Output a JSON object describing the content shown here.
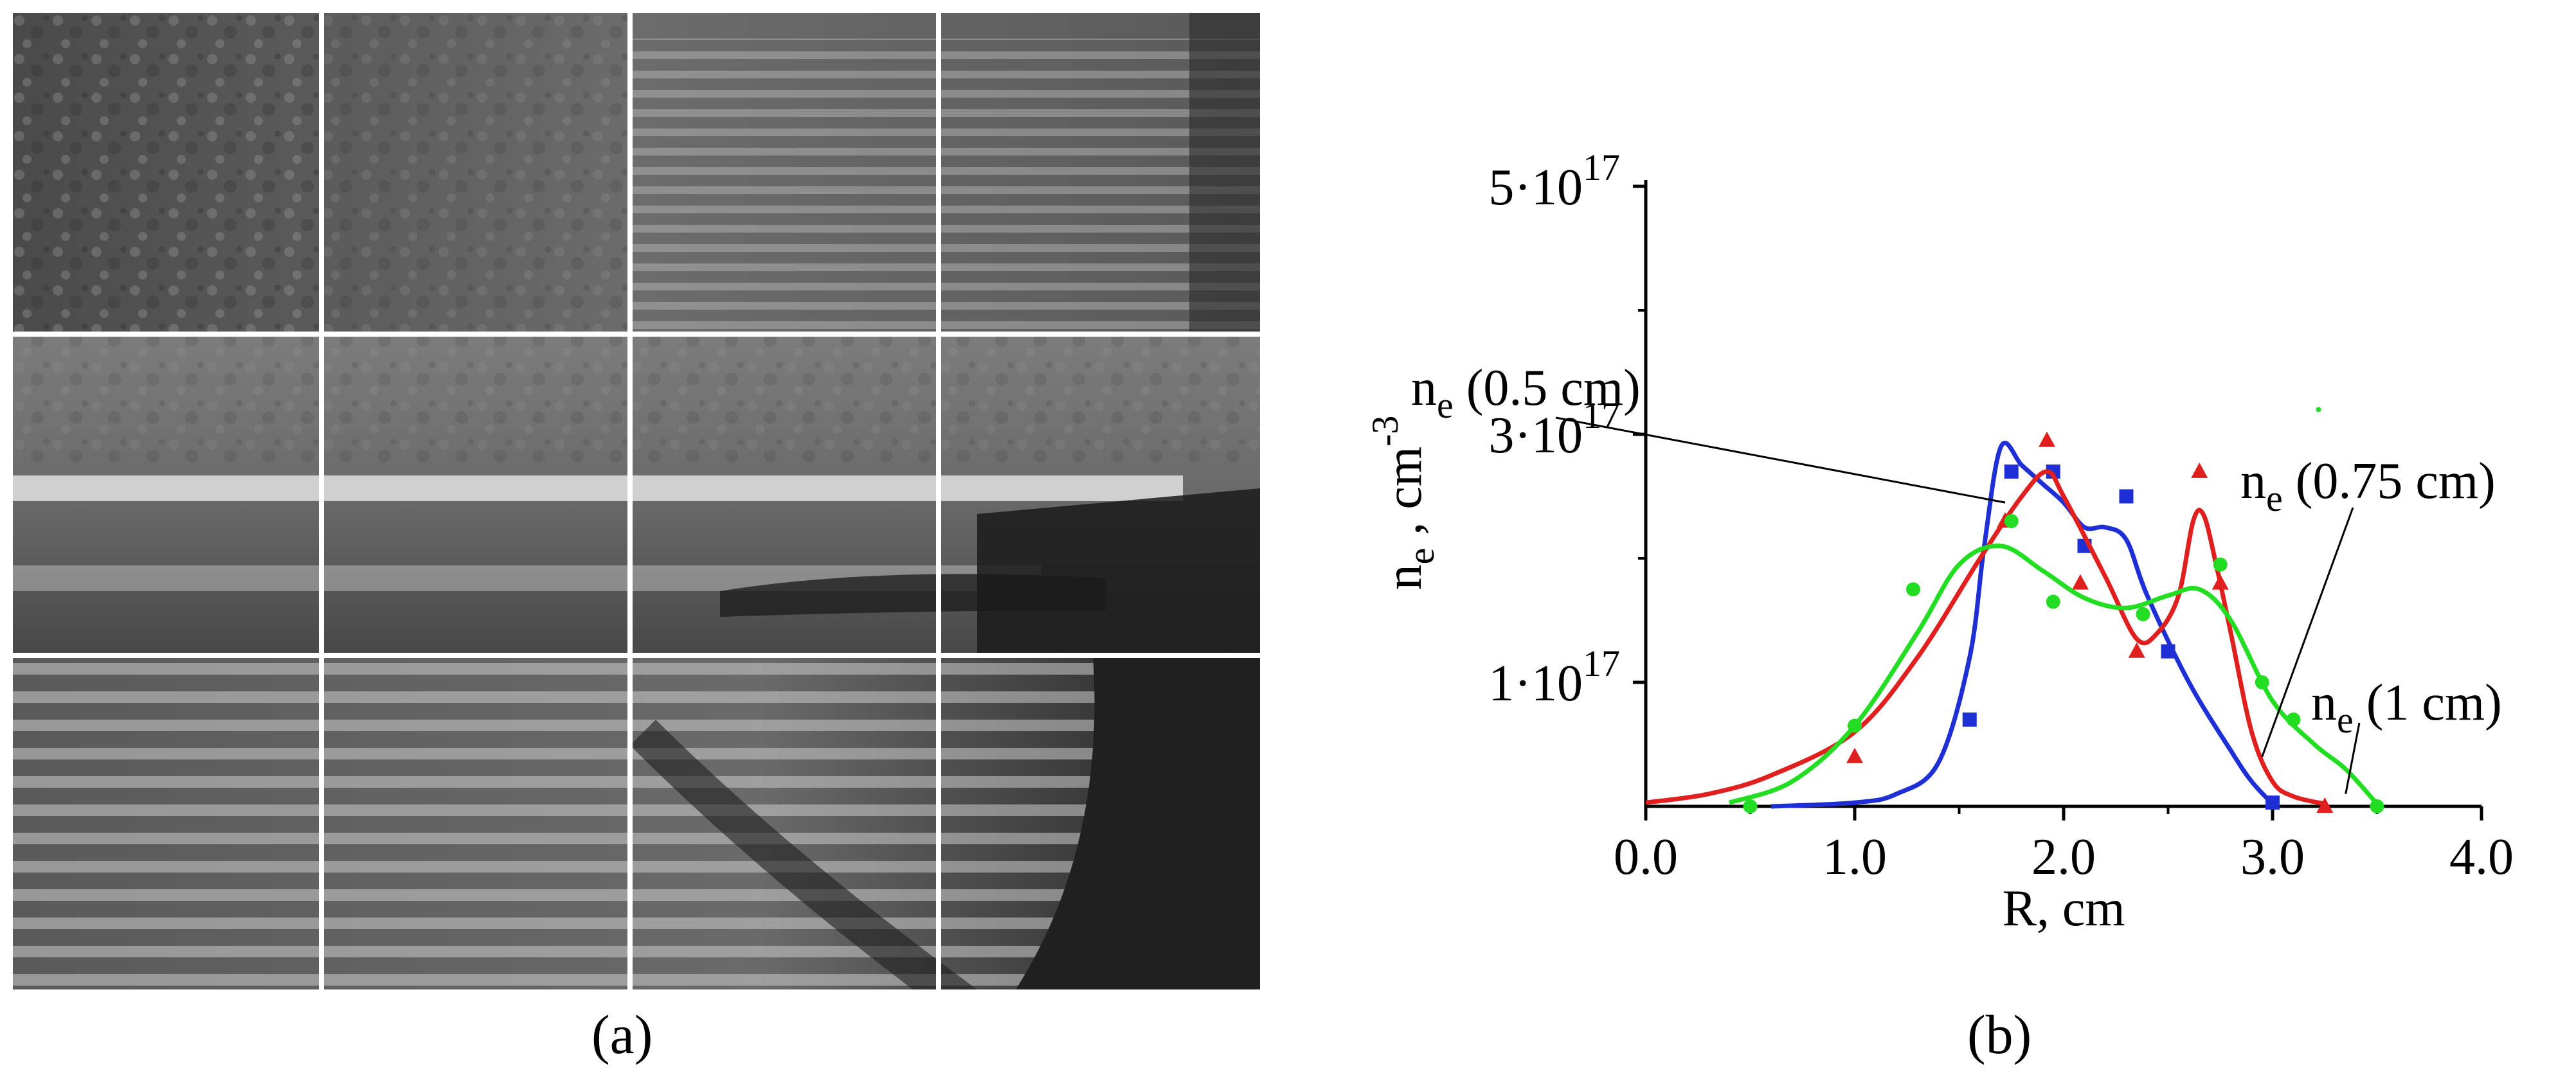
{
  "panel_a": {
    "label": "(a)",
    "image_description_icon": "interferogram-image"
  },
  "panel_b": {
    "label": "(b)"
  },
  "chart_data": {
    "type": "line",
    "title": "",
    "xlabel": "R, cm",
    "ylabel": "n_e , cm^-3",
    "ylabel_main": "n",
    "ylabel_sub": "e",
    "ylabel_rest": " , cm",
    "ylabel_sup": "-3",
    "xlim": [
      0.0,
      4.0
    ],
    "ylim": [
      0,
      5e+17
    ],
    "x_ticks": [
      0.0,
      1.0,
      2.0,
      3.0,
      4.0
    ],
    "x_tick_labels": [
      "0.0",
      "1.0",
      "2.0",
      "3.0",
      "4.0"
    ],
    "y_ticks": [
      1e+17,
      3e+17,
      5e+17
    ],
    "y_tick_labels": [
      {
        "base": "1·10",
        "exp": "17"
      },
      {
        "base": "3·10",
        "exp": "17"
      },
      {
        "base": "5·10",
        "exp": "17"
      }
    ],
    "grid": false,
    "series": [
      {
        "name": "n_e (0.5 cm)",
        "label_main": "n",
        "label_sub": "e",
        "label_rest": "  (0.5 cm)",
        "color": "#1f2fd6",
        "marker": "square",
        "curve": [
          [
            0.6,
            0.0
          ],
          [
            1.0,
            3000000000000000.0
          ],
          [
            1.2,
            1e+16
          ],
          [
            1.4,
            3.5e+16
          ],
          [
            1.55,
            1.2e+17
          ],
          [
            1.62,
            2.1e+17
          ],
          [
            1.7,
            2.9e+17
          ],
          [
            1.8,
            2.75e+17
          ],
          [
            1.9,
            2.6e+17
          ],
          [
            2.0,
            2.45e+17
          ],
          [
            2.1,
            2.25e+17
          ],
          [
            2.2,
            2.25e+17
          ],
          [
            2.3,
            2.15e+17
          ],
          [
            2.4,
            1.7e+17
          ],
          [
            2.6,
            1e+17
          ],
          [
            2.8,
            4.5e+16
          ],
          [
            2.9,
            2e+16
          ],
          [
            3.0,
            2000000000000000.0
          ]
        ],
        "points": [
          [
            1.55,
            7e+16
          ],
          [
            1.75,
            2.7e+17
          ],
          [
            1.95,
            2.7e+17
          ],
          [
            2.1,
            2.1e+17
          ],
          [
            2.3,
            2.5e+17
          ],
          [
            2.5,
            1.25e+17
          ],
          [
            3.0,
            3000000000000000.0
          ]
        ]
      },
      {
        "name": "n_e (0.75 cm)",
        "label_main": "n",
        "label_sub": "e",
        "label_rest": "  (0.75 cm)",
        "color": "#e01f1f",
        "marker": "triangle",
        "curve": [
          [
            0.0,
            3000000000000000.0
          ],
          [
            0.3,
            1e+16
          ],
          [
            0.6,
            2.5e+16
          ],
          [
            1.0,
            6e+16
          ],
          [
            1.3,
            1.2e+17
          ],
          [
            1.6,
            2e+17
          ],
          [
            1.8,
            2.5e+17
          ],
          [
            1.92,
            2.7e+17
          ],
          [
            2.0,
            2.5e+17
          ],
          [
            2.2,
            1.85e+17
          ],
          [
            2.35,
            1.35e+17
          ],
          [
            2.45,
            1.4e+17
          ],
          [
            2.55,
            1.7e+17
          ],
          [
            2.62,
            2.3e+17
          ],
          [
            2.67,
            2.35e+17
          ],
          [
            2.73,
            1.95e+17
          ],
          [
            2.8,
            1.4e+17
          ],
          [
            2.9,
            6e+16
          ],
          [
            3.0,
            2e+16
          ],
          [
            3.1,
            8000000000000000.0
          ],
          [
            3.25,
            2000000000000000.0
          ]
        ],
        "points": [
          [
            1.0,
            4e+16
          ],
          [
            1.72,
            2.3e+17
          ],
          [
            1.92,
            2.95e+17
          ],
          [
            2.08,
            1.8e+17
          ],
          [
            2.35,
            1.25e+17
          ],
          [
            2.65,
            2.7e+17
          ],
          [
            2.75,
            1.8e+17
          ],
          [
            3.25,
            0.0
          ]
        ]
      },
      {
        "name": "n_e (1 cm)",
        "label_main": "n",
        "label_sub": "e",
        "label_rest": " (1 cm)",
        "color": "#22dd22",
        "marker": "circle",
        "curve": [
          [
            0.4,
            3000000000000000.0
          ],
          [
            0.7,
            2e+16
          ],
          [
            1.0,
            6.5e+16
          ],
          [
            1.3,
            1.4e+17
          ],
          [
            1.5,
            1.95e+17
          ],
          [
            1.7,
            2.1e+17
          ],
          [
            1.9,
            1.9e+17
          ],
          [
            2.1,
            1.68e+17
          ],
          [
            2.3,
            1.6e+17
          ],
          [
            2.5,
            1.7e+17
          ],
          [
            2.65,
            1.75e+17
          ],
          [
            2.8,
            1.5e+17
          ],
          [
            3.0,
            8.5e+16
          ],
          [
            3.2,
            5e+16
          ],
          [
            3.35,
            3e+16
          ],
          [
            3.5,
            2000000000000000.0
          ]
        ],
        "points": [
          [
            0.5,
            0.0
          ],
          [
            1.0,
            6.5e+16
          ],
          [
            1.28,
            1.75e+17
          ],
          [
            1.75,
            2.3e+17
          ],
          [
            1.95,
            1.65e+17
          ],
          [
            2.38,
            1.55e+17
          ],
          [
            2.75,
            1.95e+17
          ],
          [
            2.95,
            1e+17
          ],
          [
            3.1,
            7e+16
          ],
          [
            3.5,
            0.0
          ]
        ]
      }
    ]
  }
}
